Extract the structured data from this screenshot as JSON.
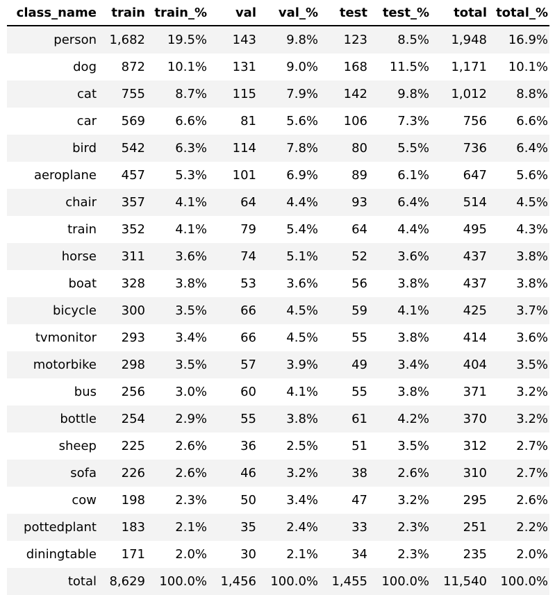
{
  "chart_data": {
    "type": "table",
    "columns": [
      "class_name",
      "train",
      "train_%",
      "val",
      "val_%",
      "test",
      "test_%",
      "total",
      "total_%"
    ],
    "rows": [
      [
        "person",
        "1,682",
        "19.5%",
        "143",
        "9.8%",
        "123",
        "8.5%",
        "1,948",
        "16.9%"
      ],
      [
        "dog",
        "872",
        "10.1%",
        "131",
        "9.0%",
        "168",
        "11.5%",
        "1,171",
        "10.1%"
      ],
      [
        "cat",
        "755",
        "8.7%",
        "115",
        "7.9%",
        "142",
        "9.8%",
        "1,012",
        "8.8%"
      ],
      [
        "car",
        "569",
        "6.6%",
        "81",
        "5.6%",
        "106",
        "7.3%",
        "756",
        "6.6%"
      ],
      [
        "bird",
        "542",
        "6.3%",
        "114",
        "7.8%",
        "80",
        "5.5%",
        "736",
        "6.4%"
      ],
      [
        "aeroplane",
        "457",
        "5.3%",
        "101",
        "6.9%",
        "89",
        "6.1%",
        "647",
        "5.6%"
      ],
      [
        "chair",
        "357",
        "4.1%",
        "64",
        "4.4%",
        "93",
        "6.4%",
        "514",
        "4.5%"
      ],
      [
        "train",
        "352",
        "4.1%",
        "79",
        "5.4%",
        "64",
        "4.4%",
        "495",
        "4.3%"
      ],
      [
        "horse",
        "311",
        "3.6%",
        "74",
        "5.1%",
        "52",
        "3.6%",
        "437",
        "3.8%"
      ],
      [
        "boat",
        "328",
        "3.8%",
        "53",
        "3.6%",
        "56",
        "3.8%",
        "437",
        "3.8%"
      ],
      [
        "bicycle",
        "300",
        "3.5%",
        "66",
        "4.5%",
        "59",
        "4.1%",
        "425",
        "3.7%"
      ],
      [
        "tvmonitor",
        "293",
        "3.4%",
        "66",
        "4.5%",
        "55",
        "3.8%",
        "414",
        "3.6%"
      ],
      [
        "motorbike",
        "298",
        "3.5%",
        "57",
        "3.9%",
        "49",
        "3.4%",
        "404",
        "3.5%"
      ],
      [
        "bus",
        "256",
        "3.0%",
        "60",
        "4.1%",
        "55",
        "3.8%",
        "371",
        "3.2%"
      ],
      [
        "bottle",
        "254",
        "2.9%",
        "55",
        "3.8%",
        "61",
        "4.2%",
        "370",
        "3.2%"
      ],
      [
        "sheep",
        "225",
        "2.6%",
        "36",
        "2.5%",
        "51",
        "3.5%",
        "312",
        "2.7%"
      ],
      [
        "sofa",
        "226",
        "2.6%",
        "46",
        "3.2%",
        "38",
        "2.6%",
        "310",
        "2.7%"
      ],
      [
        "cow",
        "198",
        "2.3%",
        "50",
        "3.4%",
        "47",
        "3.2%",
        "295",
        "2.6%"
      ],
      [
        "pottedplant",
        "183",
        "2.1%",
        "35",
        "2.4%",
        "33",
        "2.3%",
        "251",
        "2.2%"
      ],
      [
        "diningtable",
        "171",
        "2.0%",
        "30",
        "2.1%",
        "34",
        "2.3%",
        "235",
        "2.0%"
      ],
      [
        "total",
        "8,629",
        "100.0%",
        "1,456",
        "100.0%",
        "1,455",
        "100.0%",
        "11,540",
        "100.0%"
      ]
    ],
    "title": "",
    "xlabel": "",
    "ylabel": "",
    "colors": {
      "row_stripe": "#f3f3f3",
      "row_plain": "#ffffff",
      "header_rule": "#000000",
      "text": "#000000"
    }
  }
}
